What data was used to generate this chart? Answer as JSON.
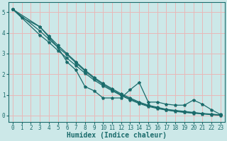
{
  "xlabel": "Humidex (Indice chaleur)",
  "xlim": [
    -0.5,
    23.5
  ],
  "ylim": [
    -0.3,
    5.5
  ],
  "bg_color": "#cce8e8",
  "grid_color": "#e8b8b8",
  "line_color": "#1a6b6b",
  "lines": [
    {
      "x": [
        0,
        1,
        3,
        4,
        5,
        6,
        7,
        8,
        9,
        10,
        11,
        12,
        13,
        14,
        15,
        16,
        17,
        18,
        19,
        20,
        21,
        22,
        23
      ],
      "y": [
        5.15,
        4.75,
        4.3,
        3.8,
        3.3,
        2.6,
        2.2,
        1.4,
        1.2,
        0.85,
        0.85,
        0.85,
        1.25,
        1.6,
        0.65,
        0.65,
        0.55,
        0.5,
        0.5,
        0.75,
        0.55,
        0.28,
        0.05
      ]
    },
    {
      "x": [
        0,
        3,
        4,
        5,
        6,
        7,
        8,
        9,
        10,
        11,
        12,
        13,
        14,
        15,
        16,
        17,
        18,
        19,
        20,
        21,
        22,
        23
      ],
      "y": [
        5.15,
        4.3,
        3.85,
        3.4,
        3.0,
        2.6,
        2.2,
        1.85,
        1.55,
        1.3,
        1.05,
        0.85,
        0.65,
        0.5,
        0.4,
        0.3,
        0.25,
        0.2,
        0.15,
        0.1,
        0.07,
        0.03
      ]
    },
    {
      "x": [
        0,
        3,
        4,
        5,
        6,
        7,
        8,
        9,
        10,
        11,
        12,
        13,
        14,
        15,
        16,
        17,
        18,
        19,
        20,
        21,
        22,
        23
      ],
      "y": [
        5.15,
        4.1,
        3.7,
        3.3,
        2.95,
        2.55,
        2.15,
        1.8,
        1.5,
        1.25,
        1.0,
        0.8,
        0.62,
        0.47,
        0.37,
        0.28,
        0.22,
        0.17,
        0.13,
        0.09,
        0.05,
        0.02
      ]
    },
    {
      "x": [
        0,
        3,
        4,
        5,
        6,
        7,
        8,
        9,
        10,
        11,
        12,
        13,
        14,
        15,
        16,
        17,
        18,
        19,
        20,
        21,
        22,
        23
      ],
      "y": [
        5.15,
        3.9,
        3.55,
        3.15,
        2.78,
        2.42,
        2.05,
        1.72,
        1.44,
        1.2,
        0.97,
        0.76,
        0.58,
        0.44,
        0.34,
        0.26,
        0.2,
        0.15,
        0.11,
        0.08,
        0.04,
        0.01
      ]
    }
  ],
  "xticks": [
    0,
    1,
    2,
    3,
    4,
    5,
    6,
    7,
    8,
    9,
    10,
    11,
    12,
    13,
    14,
    15,
    16,
    17,
    18,
    19,
    20,
    21,
    22,
    23
  ],
  "yticks": [
    0,
    1,
    2,
    3,
    4,
    5
  ],
  "tick_fontsize": 5.5,
  "label_fontsize": 7.0
}
